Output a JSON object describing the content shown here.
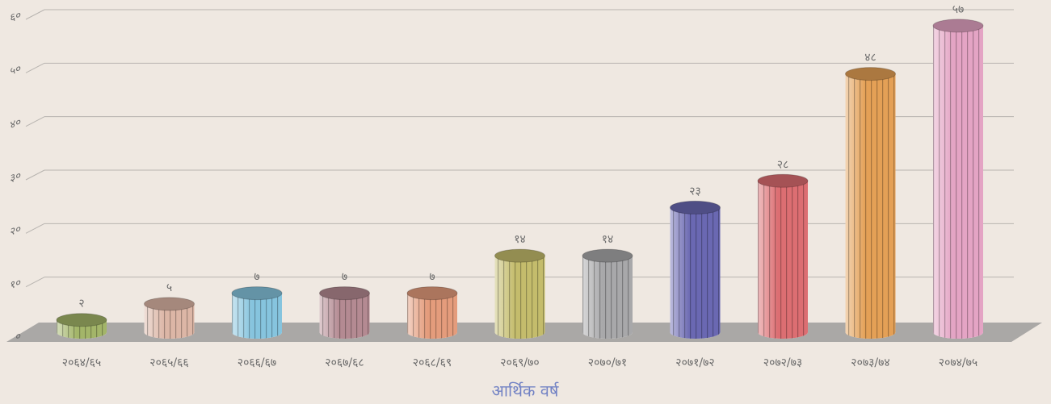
{
  "chart_data": {
    "type": "bar",
    "x_label": "आर्थिक वर्ष",
    "categories": [
      "२०६४/६५",
      "२०६५/६६",
      "२०६६/६७",
      "२०६७/६८",
      "२०६८/६९",
      "२०६९/७०",
      "२०७०/७१",
      "२०७१/७२",
      "२०७२/७३",
      "२०७३/७४",
      "२०७४/७५"
    ],
    "values": [
      2,
      5,
      7,
      7,
      7,
      14,
      14,
      23,
      28,
      48,
      57
    ],
    "value_labels": [
      "२",
      "५",
      "७",
      "७",
      "७",
      "१४",
      "१४",
      "२३",
      "२८",
      "४८",
      "५७"
    ],
    "colors": [
      "#a3b569",
      "#dcb6a6",
      "#86c4de",
      "#b48a92",
      "#e49c7c",
      "#c4bc6c",
      "#a8a8aa",
      "#6a68b2",
      "#dc6e72",
      "#e4a056",
      "#e4a4c4"
    ],
    "ylim": [
      0,
      60
    ],
    "yticks": [
      {
        "value": 0,
        "label": "०"
      },
      {
        "value": 10,
        "label": "१०"
      },
      {
        "value": 20,
        "label": "२०"
      },
      {
        "value": 30,
        "label": "३०"
      },
      {
        "value": 40,
        "label": "४०"
      },
      {
        "value": 50,
        "label": "५०"
      },
      {
        "value": 60,
        "label": "६०"
      }
    ],
    "grid": true
  }
}
